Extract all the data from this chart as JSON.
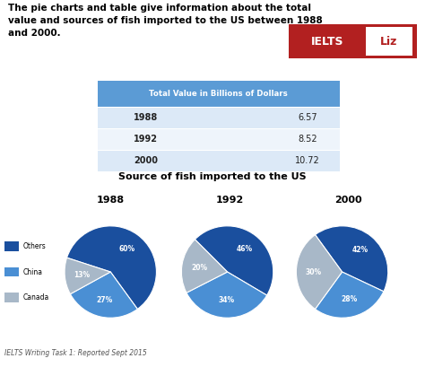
{
  "title_line1": "The pie charts and table give information about the total",
  "title_line2": "value and sources of fish imported to the US between 1988",
  "title_line3": "and 2000.",
  "table_header": "Total Value in Billions of Dollars",
  "table_data": [
    [
      "1988",
      "6.57"
    ],
    [
      "1992",
      "8.52"
    ],
    [
      "2000",
      "10.72"
    ]
  ],
  "pie_title": "Source of fish imported to the US",
  "pie_years": [
    "1988",
    "1992",
    "2000"
  ],
  "pie_data": [
    [
      60,
      27,
      13
    ],
    [
      46,
      34,
      20
    ],
    [
      42,
      28,
      30
    ]
  ],
  "pie_labels": [
    [
      "60%",
      "27%",
      "13%"
    ],
    [
      "46%",
      "34%",
      "20%"
    ],
    [
      "42%",
      "28%",
      "30%"
    ]
  ],
  "pie_startangles": [
    162,
    135,
    126
  ],
  "pie_colors": [
    "#1a4f9e",
    "#4a8fd4",
    "#a8b8c8"
  ],
  "legend_labels": [
    "Others",
    "China",
    "Canada"
  ],
  "legend_colors": [
    "#1a4f9e",
    "#4a8fd4",
    "#a8b8c8"
  ],
  "footer": "IELTS Writing Task 1: Reported Sept 2015",
  "ielts_liz_bg": "#b22020",
  "bg_color": "#ffffff",
  "table_header_bg": "#5b9bd5",
  "table_row_bg_1": "#dce9f7",
  "table_row_bg_2": "#eef4fb",
  "table_row_bg_3": "#dce9f7"
}
